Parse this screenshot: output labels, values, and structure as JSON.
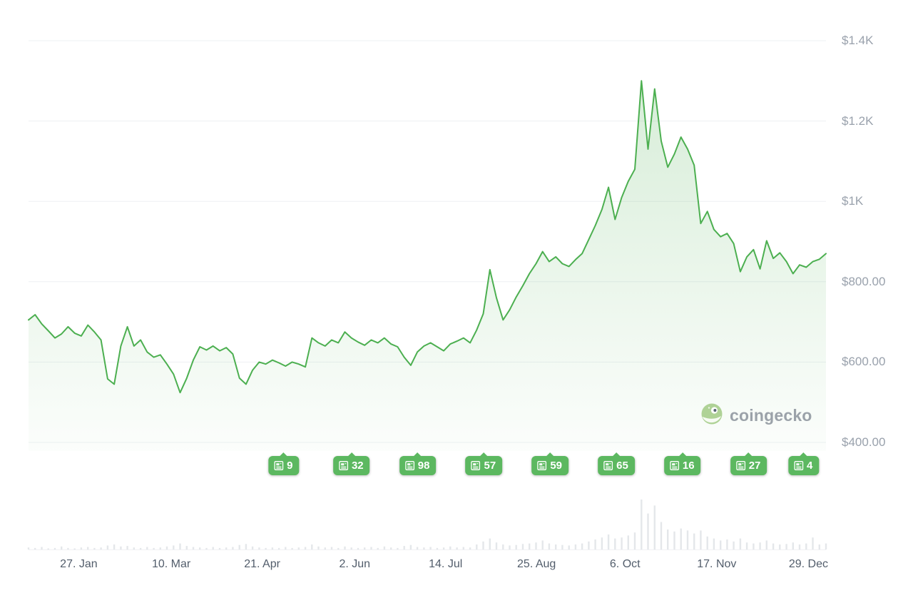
{
  "watermark": {
    "text": "coingecko"
  },
  "chart_data": {
    "type": "area",
    "title": "",
    "xlabel": "",
    "ylabel": "",
    "ylim": [
      400,
      1400
    ],
    "grid": true,
    "legend": false,
    "y_ticks": [
      {
        "label": "$1.4K",
        "value": 1400
      },
      {
        "label": "$1.2K",
        "value": 1200
      },
      {
        "label": "$1K",
        "value": 1000
      },
      {
        "label": "$800.00",
        "value": 800
      },
      {
        "label": "$600.00",
        "value": 600
      },
      {
        "label": "$400.00",
        "value": 400
      }
    ],
    "x_ticks": [
      {
        "label": "27. Jan",
        "t": 0.063
      },
      {
        "label": "10. Mar",
        "t": 0.179
      },
      {
        "label": "21. Apr",
        "t": 0.293
      },
      {
        "label": "2. Jun",
        "t": 0.409
      },
      {
        "label": "14. Jul",
        "t": 0.523
      },
      {
        "label": "25. Aug",
        "t": 0.637
      },
      {
        "label": "6. Oct",
        "t": 0.748
      },
      {
        "label": "17. Nov",
        "t": 0.863
      },
      {
        "label": "29. Dec",
        "t": 0.978
      }
    ],
    "prices": [
      705,
      718,
      695,
      678,
      660,
      670,
      688,
      672,
      665,
      692,
      675,
      655,
      558,
      545,
      640,
      688,
      640,
      655,
      625,
      612,
      618,
      595,
      570,
      524,
      560,
      605,
      638,
      630,
      640,
      628,
      636,
      620,
      560,
      545,
      580,
      600,
      595,
      605,
      598,
      590,
      600,
      595,
      588,
      660,
      648,
      640,
      655,
      648,
      675,
      660,
      650,
      642,
      655,
      648,
      660,
      645,
      638,
      612,
      592,
      625,
      640,
      648,
      638,
      628,
      645,
      652,
      660,
      648,
      680,
      720,
      830,
      760,
      705,
      730,
      762,
      790,
      820,
      845,
      875,
      850,
      862,
      845,
      838,
      855,
      870,
      905,
      940,
      980,
      1035,
      955,
      1010,
      1050,
      1080,
      1300,
      1130,
      1280,
      1150,
      1085,
      1118,
      1160,
      1130,
      1090,
      945,
      975,
      930,
      912,
      920,
      895,
      825,
      862,
      880,
      832,
      902,
      858,
      872,
      850,
      820,
      842,
      836,
      850,
      856,
      870
    ],
    "volumes": [
      4,
      3,
      5,
      2,
      3,
      6,
      3,
      2,
      4,
      5,
      3,
      4,
      8,
      10,
      6,
      7,
      4,
      3,
      5,
      3,
      4,
      6,
      8,
      12,
      7,
      5,
      4,
      3,
      5,
      3,
      4,
      5,
      9,
      11,
      6,
      4,
      3,
      4,
      3,
      5,
      3,
      4,
      5,
      10,
      6,
      4,
      5,
      3,
      6,
      4,
      3,
      4,
      5,
      3,
      6,
      4,
      3,
      7,
      9,
      5,
      4,
      5,
      3,
      4,
      6,
      4,
      5,
      4,
      10,
      16,
      22,
      14,
      10,
      8,
      9,
      11,
      12,
      14,
      18,
      12,
      10,
      9,
      8,
      10,
      12,
      16,
      20,
      24,
      30,
      22,
      24,
      28,
      34,
      100,
      72,
      88,
      55,
      40,
      36,
      42,
      38,
      32,
      38,
      26,
      22,
      18,
      20,
      16,
      22,
      14,
      12,
      14,
      18,
      12,
      10,
      11,
      14,
      10,
      12,
      24,
      10,
      12
    ],
    "news_badges": [
      {
        "count": "9",
        "t": 0.32
      },
      {
        "count": "32",
        "t": 0.405
      },
      {
        "count": "98",
        "t": 0.488
      },
      {
        "count": "57",
        "t": 0.571
      },
      {
        "count": "59",
        "t": 0.654
      },
      {
        "count": "65",
        "t": 0.737
      },
      {
        "count": "16",
        "t": 0.82
      },
      {
        "count": "27",
        "t": 0.903
      },
      {
        "count": "4",
        "t": 0.972
      }
    ],
    "colors": {
      "line": "#4caf50",
      "fill_top": "rgba(76,175,80,0.22)",
      "fill_bottom": "rgba(76,175,80,0.02)",
      "badge": "#5cb860",
      "grid": "#eef0f3",
      "volume": "#e4e7ea",
      "volume_baseline": "#f0f1f4",
      "y_label": "#99a1ac",
      "x_label": "#525d6b",
      "watermark_text": "#949ba3"
    }
  }
}
